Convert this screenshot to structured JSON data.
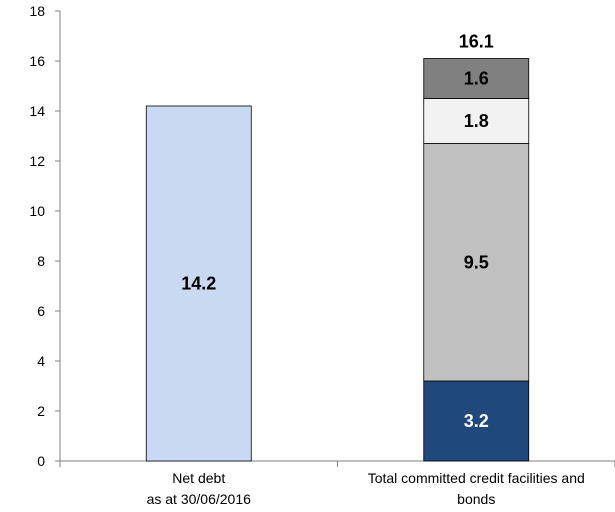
{
  "chart_data": {
    "type": "bar",
    "stacked": true,
    "title": "",
    "xlabel": "",
    "ylabel": "",
    "ylim": [
      0,
      18
    ],
    "yticks": [
      0,
      2,
      4,
      6,
      8,
      10,
      12,
      14,
      16,
      18
    ],
    "grid": false,
    "legend": "none",
    "categories": [
      [
        "Net debt",
        "as at 30/06/2016"
      ],
      [
        "Total committed credit facilities and",
        "bonds"
      ]
    ],
    "bars": [
      {
        "segments": [
          {
            "value": 14.2,
            "label": "14.2",
            "color": "#c9d9f1",
            "text_color": "#000000"
          }
        ]
      },
      {
        "segments": [
          {
            "value": 3.2,
            "label": "3.2",
            "color": "#1f497d",
            "text_color": "#ffffff"
          },
          {
            "value": 9.5,
            "label": "9.5",
            "color": "#c0c0c0",
            "text_color": "#000000"
          },
          {
            "value": 1.8,
            "label": "1.8",
            "color": "#f2f2f2",
            "text_color": "#000000"
          },
          {
            "value": 1.6,
            "label": "1.6",
            "color": "#808080",
            "text_color": "#000000"
          }
        ],
        "total_label": "16.1"
      }
    ]
  }
}
